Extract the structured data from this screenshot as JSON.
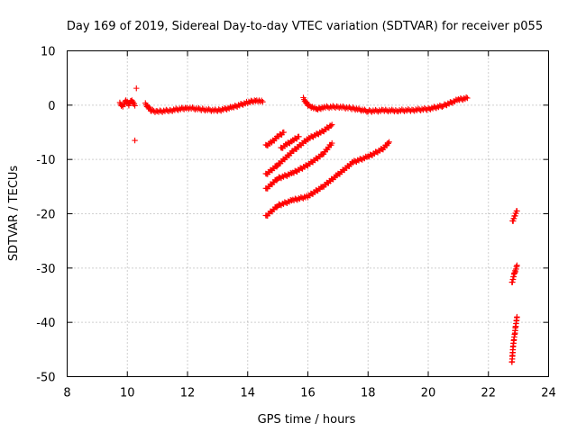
{
  "chart_data": {
    "type": "scatter",
    "title": "Day 169 of 2019, Sidereal Day-to-day VTEC variation (SDTVAR) for receiver p055",
    "xlabel": "GPS time / hours",
    "ylabel": "SDTVAR / TECUs",
    "xlim": [
      8,
      24
    ],
    "ylim": [
      -50,
      10
    ],
    "x_ticks": [
      8,
      10,
      12,
      14,
      16,
      18,
      20,
      22,
      24
    ],
    "y_ticks": [
      -50,
      -40,
      -30,
      -20,
      -10,
      0,
      10
    ],
    "grid": true,
    "marker": "plus",
    "color": "#ff0000",
    "series": [
      {
        "segments": [
          {
            "x": [
              9.75,
              9.85,
              9.95,
              10.05,
              10.15,
              10.25
            ],
            "y": [
              0.3,
              -0.2,
              0.8,
              0.1,
              0.9,
              -0.1
            ]
          },
          {
            "x": [
              10.3
            ],
            "y": [
              3.1
            ]
          },
          {
            "x": [
              10.25
            ],
            "y": [
              -6.5
            ]
          },
          {
            "x": [
              10.6,
              10.8,
              11.0,
              11.5,
              12.0,
              12.5,
              13.0,
              13.5,
              14.0,
              14.3,
              14.5
            ],
            "y": [
              0.2,
              -1.0,
              -1.2,
              -0.9,
              -0.5,
              -0.8,
              -1.0,
              -0.4,
              0.5,
              0.9,
              0.6
            ]
          },
          {
            "x": [
              15.85,
              16.0,
              16.3,
              16.5,
              17.0,
              17.5,
              18.0,
              18.5,
              19.0,
              19.5,
              20.0,
              20.5,
              21.0,
              21.3
            ],
            "y": [
              1.2,
              0.0,
              -0.8,
              -0.4,
              -0.3,
              -0.6,
              -1.1,
              -1.0,
              -1.0,
              -0.9,
              -0.7,
              -0.1,
              1.0,
              1.3
            ]
          },
          {
            "x": [
              14.6,
              14.8,
              15.0,
              15.2
            ],
            "y": [
              -7.5,
              -6.8,
              -5.8,
              -5.0
            ]
          },
          {
            "x": [
              15.1,
              15.3,
              15.5,
              15.7
            ],
            "y": [
              -8.0,
              -7.2,
              -6.5,
              -5.8
            ]
          },
          {
            "x": [
              14.6,
              15.0,
              15.5,
              16.0,
              16.5,
              16.8
            ],
            "y": [
              -12.8,
              -11.0,
              -8.5,
              -6.2,
              -4.8,
              -3.6
            ]
          },
          {
            "x": [
              14.6,
              15.0,
              15.5,
              16.0,
              16.5,
              16.8
            ],
            "y": [
              -15.5,
              -13.5,
              -12.5,
              -11.0,
              -9.0,
              -7.0
            ]
          },
          {
            "x": [
              14.6,
              15.0,
              15.5,
              16.0,
              16.5,
              17.0,
              17.5,
              18.0,
              18.5,
              18.7
            ],
            "y": [
              -20.5,
              -18.5,
              -17.5,
              -16.8,
              -15.0,
              -12.8,
              -10.5,
              -9.5,
              -8.0,
              -6.8
            ]
          },
          {
            "x": [
              22.8,
              22.85,
              22.9,
              22.95
            ],
            "y": [
              -21.5,
              -20.8,
              -20.0,
              -19.5
            ]
          },
          {
            "x": [
              22.78,
              22.82,
              22.86,
              22.9,
              22.95
            ],
            "y": [
              -32.8,
              -32.0,
              -31.0,
              -30.5,
              -29.5
            ]
          },
          {
            "x": [
              22.78,
              22.8,
              22.82,
              22.85,
              22.88,
              22.9,
              22.95
            ],
            "y": [
              -47.5,
              -46.0,
              -44.5,
              -43.0,
              -42.0,
              -41.0,
              -39.0
            ]
          }
        ]
      }
    ]
  }
}
